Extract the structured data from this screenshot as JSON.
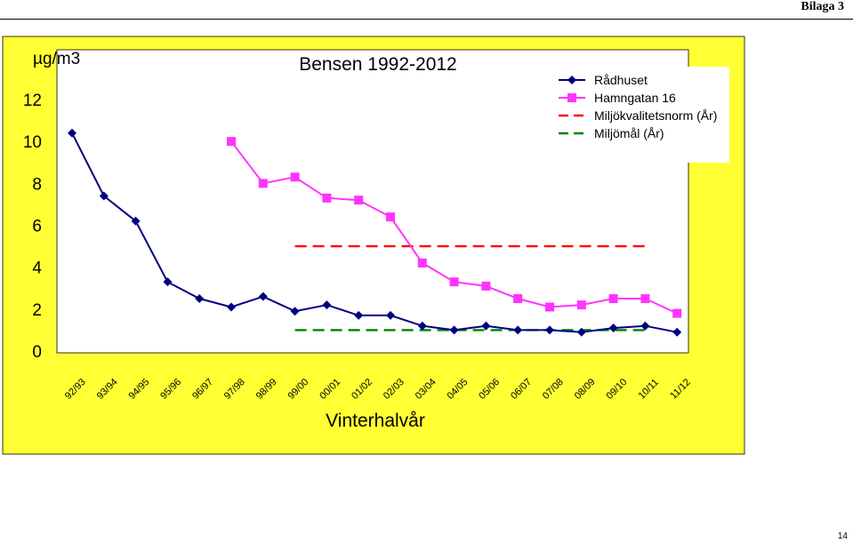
{
  "page": {
    "header": "Bilaga 3",
    "page_number": "14"
  },
  "colors": {
    "background": "#ffff33",
    "plot_area": "#ffffff",
    "radhuset": "#000080",
    "hamngatan": "#ff33ff",
    "norm": "#ff0000",
    "goal": "#008000"
  },
  "chart_data": {
    "type": "line",
    "title": "Bensen 1992-2012",
    "ylabel": "µg/m3",
    "xlabel": "Vinterhalvår",
    "ylim": [
      0,
      12
    ],
    "yticks": [
      0,
      2,
      4,
      6,
      8,
      10,
      12
    ],
    "grid": false,
    "legend_position": "top-right",
    "categories": [
      "92/93",
      "93/94",
      "94/95",
      "95/96",
      "96/97",
      "97/98",
      "98/99",
      "99/00",
      "00/01",
      "01/02",
      "02/03",
      "03/04",
      "04/05",
      "05/06",
      "06/07",
      "07/08",
      "08/09",
      "09/10",
      "10/11",
      "11/12"
    ],
    "series": [
      {
        "name": "Rådhuset",
        "marker": "diamond",
        "line": "solid",
        "values": [
          10.4,
          7.4,
          6.2,
          3.3,
          2.5,
          2.1,
          2.6,
          1.9,
          2.2,
          1.7,
          1.7,
          1.2,
          1.0,
          1.2,
          1.0,
          1.0,
          0.9,
          1.1,
          1.2,
          0.9
        ]
      },
      {
        "name": "Hamngatan 16",
        "marker": "square",
        "line": "solid",
        "values": [
          null,
          null,
          null,
          null,
          null,
          10.0,
          8.0,
          8.3,
          7.3,
          7.2,
          6.4,
          4.2,
          3.3,
          3.1,
          2.5,
          2.1,
          2.2,
          2.5,
          2.5,
          1.8
        ]
      },
      {
        "name": "Miljökvalitetsnorm (År)",
        "marker": "none",
        "line": "dashed",
        "values": [
          null,
          null,
          null,
          null,
          null,
          null,
          null,
          5.0,
          5.0,
          5.0,
          5.0,
          5.0,
          5.0,
          5.0,
          5.0,
          5.0,
          5.0,
          5.0,
          5.0,
          null
        ]
      },
      {
        "name": "Miljömål (År)",
        "marker": "none",
        "line": "dashed",
        "values": [
          null,
          null,
          null,
          null,
          null,
          null,
          null,
          1.0,
          1.0,
          1.0,
          1.0,
          1.0,
          1.0,
          1.0,
          1.0,
          1.0,
          1.0,
          1.0,
          1.0,
          null
        ]
      }
    ]
  }
}
